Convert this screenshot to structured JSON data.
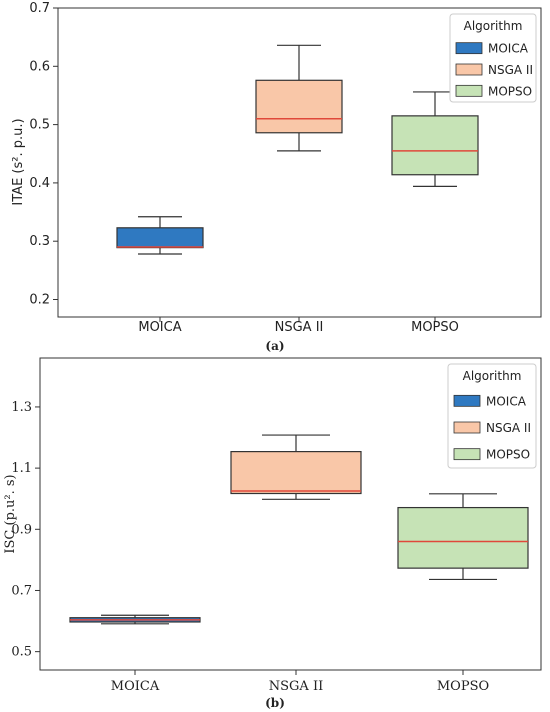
{
  "colors": {
    "moica": "#2f79c1",
    "nsga": "#f9c7a8",
    "mopso": "#c6e3b6",
    "median": "#e0483a",
    "whisker": "#333333"
  },
  "chart_data": [
    {
      "type": "box",
      "caption": "(a)",
      "ylabel": "ITAE (s². p.u.)",
      "ylim": [
        0.17,
        0.7
      ],
      "yticks": [
        "0.2",
        "0.3",
        "0.4",
        "0.5",
        "0.6",
        "0.7"
      ],
      "ytick_values": [
        0.2,
        0.3,
        0.4,
        0.5,
        0.6,
        0.7
      ],
      "categories": [
        "MOICA",
        "NSGA II",
        "MOPSO"
      ],
      "legend": {
        "title": "Algorithm",
        "position": "top-right",
        "labels": [
          "MOICA",
          "NSGA II",
          "MOPSO"
        ]
      },
      "boxes": [
        {
          "name": "MOICA",
          "min": 0.278,
          "q1": 0.289,
          "median": 0.29,
          "q3": 0.323,
          "max": 0.342
        },
        {
          "name": "NSGA II",
          "min": 0.455,
          "q1": 0.486,
          "median": 0.51,
          "q3": 0.576,
          "max": 0.636
        },
        {
          "name": "MOPSO",
          "min": 0.394,
          "q1": 0.414,
          "median": 0.455,
          "q3": 0.515,
          "max": 0.556
        }
      ]
    },
    {
      "type": "box",
      "caption": "(b)",
      "ylabel": "ISC (p.u². s)",
      "ylim": [
        0.44,
        1.46
      ],
      "yticks": [
        "0.5",
        "0.7",
        "0.9",
        "1.1",
        "1.3"
      ],
      "ytick_values": [
        0.5,
        0.7,
        0.9,
        1.1,
        1.3
      ],
      "categories": [
        "MOICA",
        "NSGA II",
        "MOPSO"
      ],
      "legend": {
        "title": "Algorithm",
        "position": "top-right",
        "labels": [
          "MOICA",
          "NSGA II",
          "MOPSO"
        ]
      },
      "boxes": [
        {
          "name": "MOICA",
          "min": 0.591,
          "q1": 0.597,
          "median": 0.604,
          "q3": 0.611,
          "max": 0.619
        },
        {
          "name": "NSGA II",
          "min": 0.998,
          "q1": 1.017,
          "median": 1.025,
          "q3": 1.154,
          "max": 1.208
        },
        {
          "name": "MOPSO",
          "min": 0.736,
          "q1": 0.773,
          "median": 0.86,
          "q3": 0.971,
          "max": 1.016
        }
      ]
    }
  ]
}
